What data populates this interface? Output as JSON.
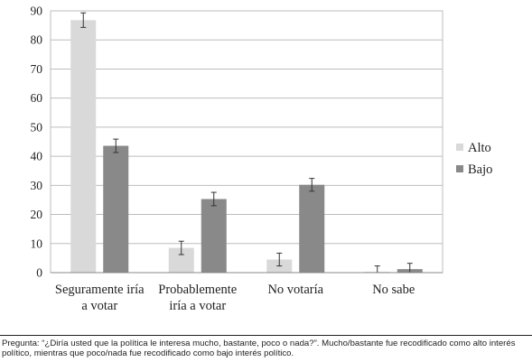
{
  "chart_data": {
    "type": "bar",
    "categories": [
      [
        "Seguramente iría",
        "a votar"
      ],
      [
        "Probablemente",
        "iría a votar"
      ],
      [
        "No votaría"
      ],
      [
        "No sabe"
      ]
    ],
    "series": [
      {
        "name": "Alto",
        "color": "#d9d9d9",
        "values": [
          86.8,
          8.5,
          4.5,
          0.3
        ],
        "error": [
          2.5,
          2.3,
          2.2,
          2.0
        ]
      },
      {
        "name": "Bajo",
        "color": "#898989",
        "values": [
          43.6,
          25.3,
          30.2,
          1.2
        ],
        "error": [
          2.3,
          2.3,
          2.2,
          2.0
        ]
      }
    ],
    "ylim": [
      0,
      90
    ],
    "yticks": [
      0,
      10,
      20,
      30,
      40,
      50,
      60,
      70,
      80,
      90
    ],
    "grid": true,
    "legend": "right"
  },
  "note": "Pregunta: “¿Diría usted que la política le interesa mucho, bastante, poco o nada?”. Mucho/bastante fue recodificado como alto interés político, mientras que poco/nada fue recodificado como bajo interés político."
}
